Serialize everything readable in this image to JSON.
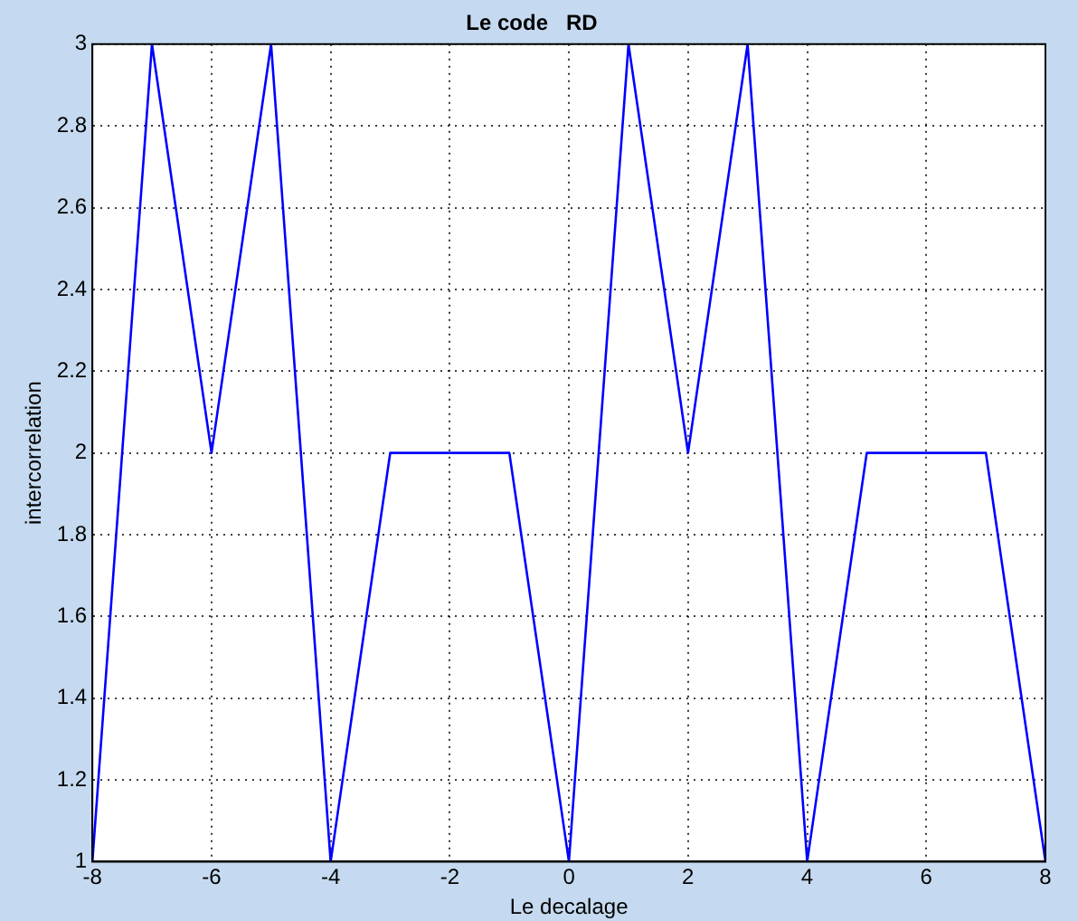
{
  "chart_data": {
    "type": "line",
    "title": "Le code   RD",
    "xlabel": "Le decalage",
    "ylabel": "intercorrelation",
    "x": [
      -8,
      -7,
      -6,
      -5,
      -4,
      -3,
      -2,
      -1,
      0,
      1,
      2,
      3,
      4,
      5,
      6,
      7,
      8
    ],
    "series": [
      {
        "color": "#0000ff",
        "values": [
          1,
          3,
          2,
          3,
          1,
          2,
          2,
          2,
          1,
          3,
          2,
          3,
          1,
          2,
          2,
          2,
          1
        ]
      }
    ],
    "xlim": [
      -8,
      8
    ],
    "xticks": [
      -8,
      -6,
      -4,
      -2,
      0,
      2,
      4,
      6,
      8
    ],
    "ylim": [
      1,
      3
    ],
    "yticks": [
      1,
      1.2,
      1.4,
      1.6,
      1.8,
      2,
      2.2,
      2.4,
      2.6,
      2.8,
      3
    ],
    "grid": true,
    "legend": false,
    "marker": "none",
    "line_style": "solid"
  }
}
